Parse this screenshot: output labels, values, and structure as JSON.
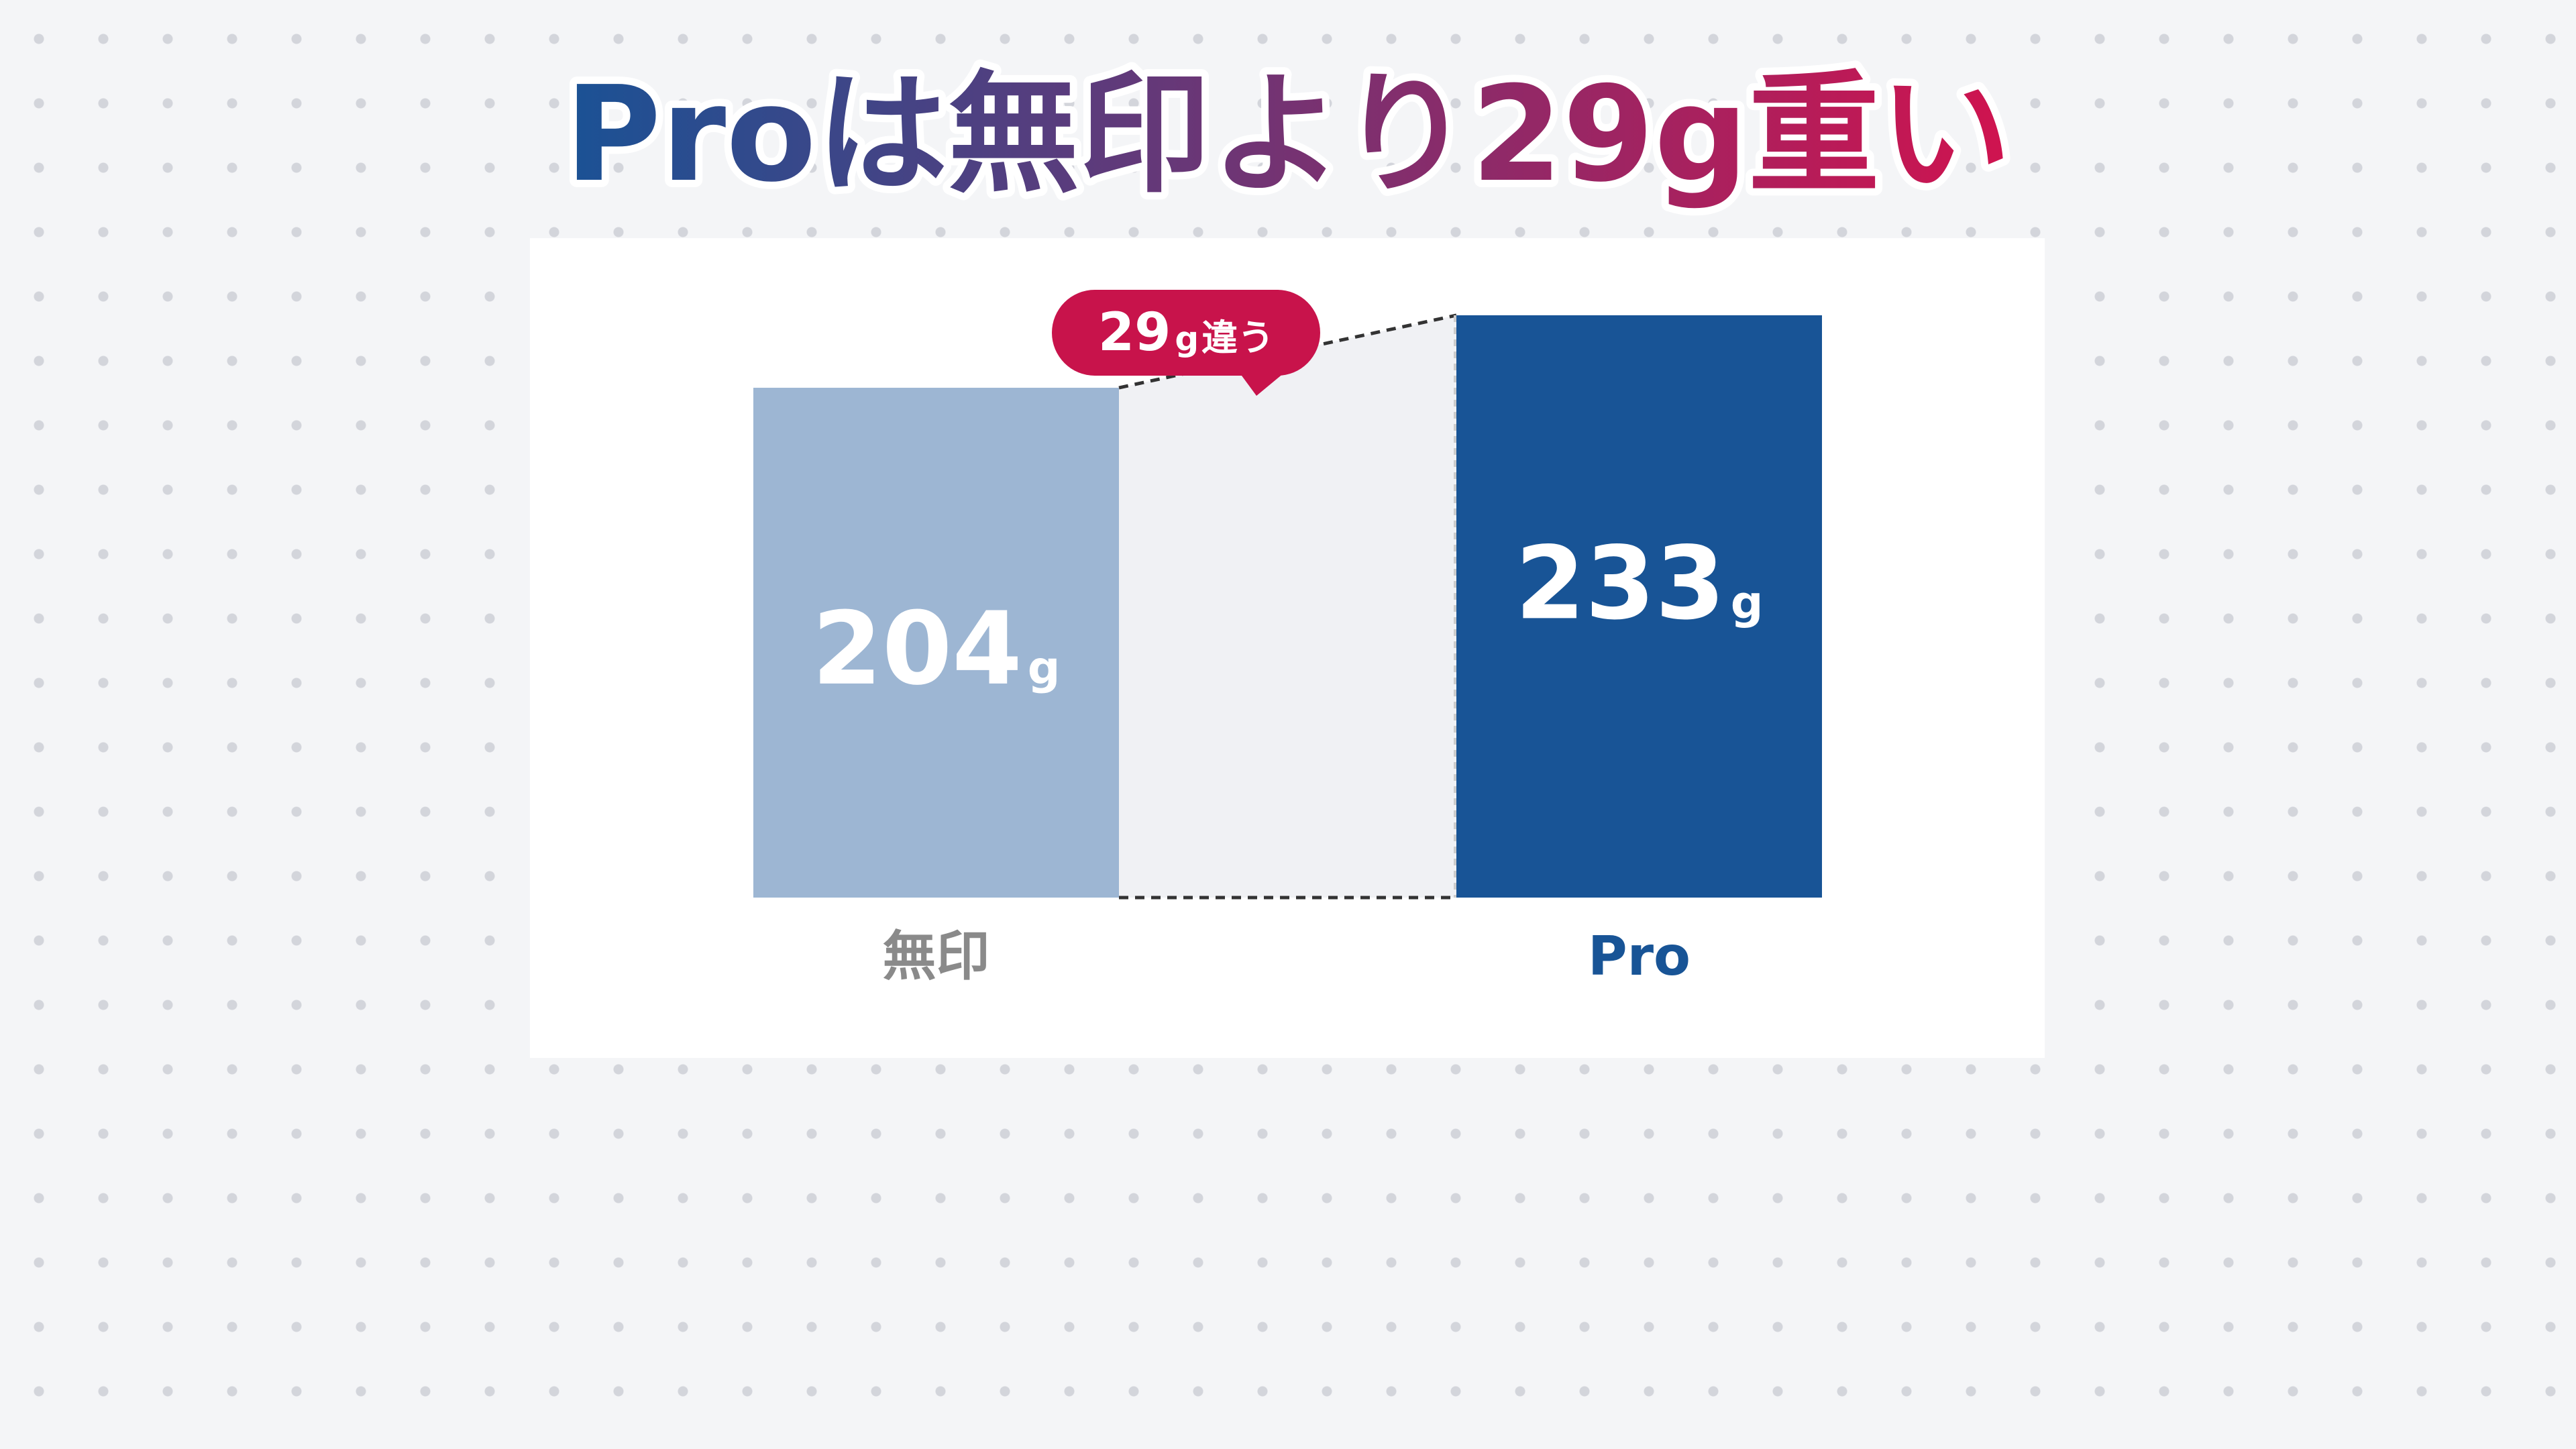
{
  "title": {
    "text": "Proは無印より29g重い",
    "gradient_start": "#1a5295",
    "gradient_end": "#d0134f"
  },
  "colors": {
    "background": "#f4f5f7",
    "card": "#ffffff",
    "muji_bar": "#9db6d3",
    "pro_bar": "#185496",
    "gap_fill": "#f0f1f4",
    "muji_label": "#8a8a8a",
    "pro_label": "#185496",
    "callout": "#c8134b"
  },
  "chart_data": {
    "type": "bar",
    "categories": [
      "無印",
      "Pro"
    ],
    "values": [
      204,
      233
    ],
    "value_labels": [
      "204",
      "233"
    ],
    "unit": "g",
    "ylim": [
      0,
      233
    ],
    "grid": false,
    "legend": "none",
    "annotation": {
      "value": "29",
      "unit": "g",
      "suffix": "違う"
    }
  }
}
